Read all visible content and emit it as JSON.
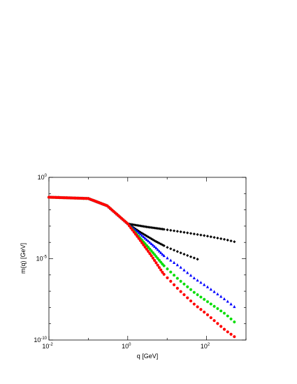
{
  "chart_data": {
    "type": "scatter",
    "title": "",
    "xlabel": "q [GeV]",
    "ylabel": "m(q) [GeV]",
    "x_scale": "log",
    "y_scale": "log",
    "xlim": [
      0.01,
      1000
    ],
    "ylim": [
      1e-10,
      1
    ],
    "x_ticks": [
      {
        "base": "10",
        "exp": "-2"
      },
      {
        "base": "10",
        "exp": "0"
      },
      {
        "base": "10",
        "exp": "2"
      }
    ],
    "y_ticks": [
      {
        "base": "10",
        "exp": "-10"
      },
      {
        "base": "10",
        "exp": "-5"
      },
      {
        "base": "10",
        "exp": "0"
      }
    ],
    "grid": false,
    "legend": "none",
    "series": [
      {
        "color": "#000000",
        "marker": "diamond",
        "x": [
          0.01,
          0.1,
          0.3,
          1,
          3,
          10,
          30,
          100,
          300,
          600
        ],
        "y": [
          0.06,
          0.05,
          0.018,
          0.0014,
          0.0009,
          0.0006,
          0.0004,
          0.00025,
          0.00015,
          0.0001
        ]
      },
      {
        "color": "#000000",
        "marker": "diamond",
        "x": [
          0.01,
          0.1,
          0.3,
          1,
          2,
          5,
          10,
          20,
          40,
          70
        ],
        "y": [
          0.06,
          0.05,
          0.018,
          0.0014,
          0.00045,
          0.00012,
          5e-05,
          2.5e-05,
          1.3e-05,
          8e-06
        ]
      },
      {
        "color": "#0000ff",
        "marker": "triangle",
        "x": [
          0.01,
          0.1,
          0.3,
          1,
          2,
          5,
          8,
          20,
          50,
          100,
          300,
          600
        ],
        "y": [
          0.06,
          0.05,
          0.018,
          0.0014,
          0.00035,
          5e-05,
          1.6e-05,
          3.5e-06,
          6e-07,
          2e-07,
          3e-08,
          8e-09
        ]
      },
      {
        "color": "#00dd00",
        "marker": "star",
        "x": [
          0.01,
          0.1,
          0.3,
          1,
          2,
          4,
          8,
          20,
          50,
          100,
          300,
          600
        ],
        "y": [
          0.06,
          0.05,
          0.018,
          0.0014,
          0.0002,
          3e-05,
          4e-06,
          5e-07,
          8e-08,
          2.5e-08,
          4e-09,
          9e-10
        ]
      },
      {
        "color": "#ff0000",
        "marker": "circle",
        "x": [
          0.01,
          0.1,
          0.3,
          1,
          2,
          4,
          8,
          20,
          50,
          100,
          300,
          600
        ],
        "y": [
          0.06,
          0.05,
          0.018,
          0.0014,
          0.00015,
          1.5e-05,
          1.2e-06,
          1.2e-07,
          1.5e-08,
          4e-09,
          4e-10,
          1.2e-10
        ]
      }
    ]
  }
}
